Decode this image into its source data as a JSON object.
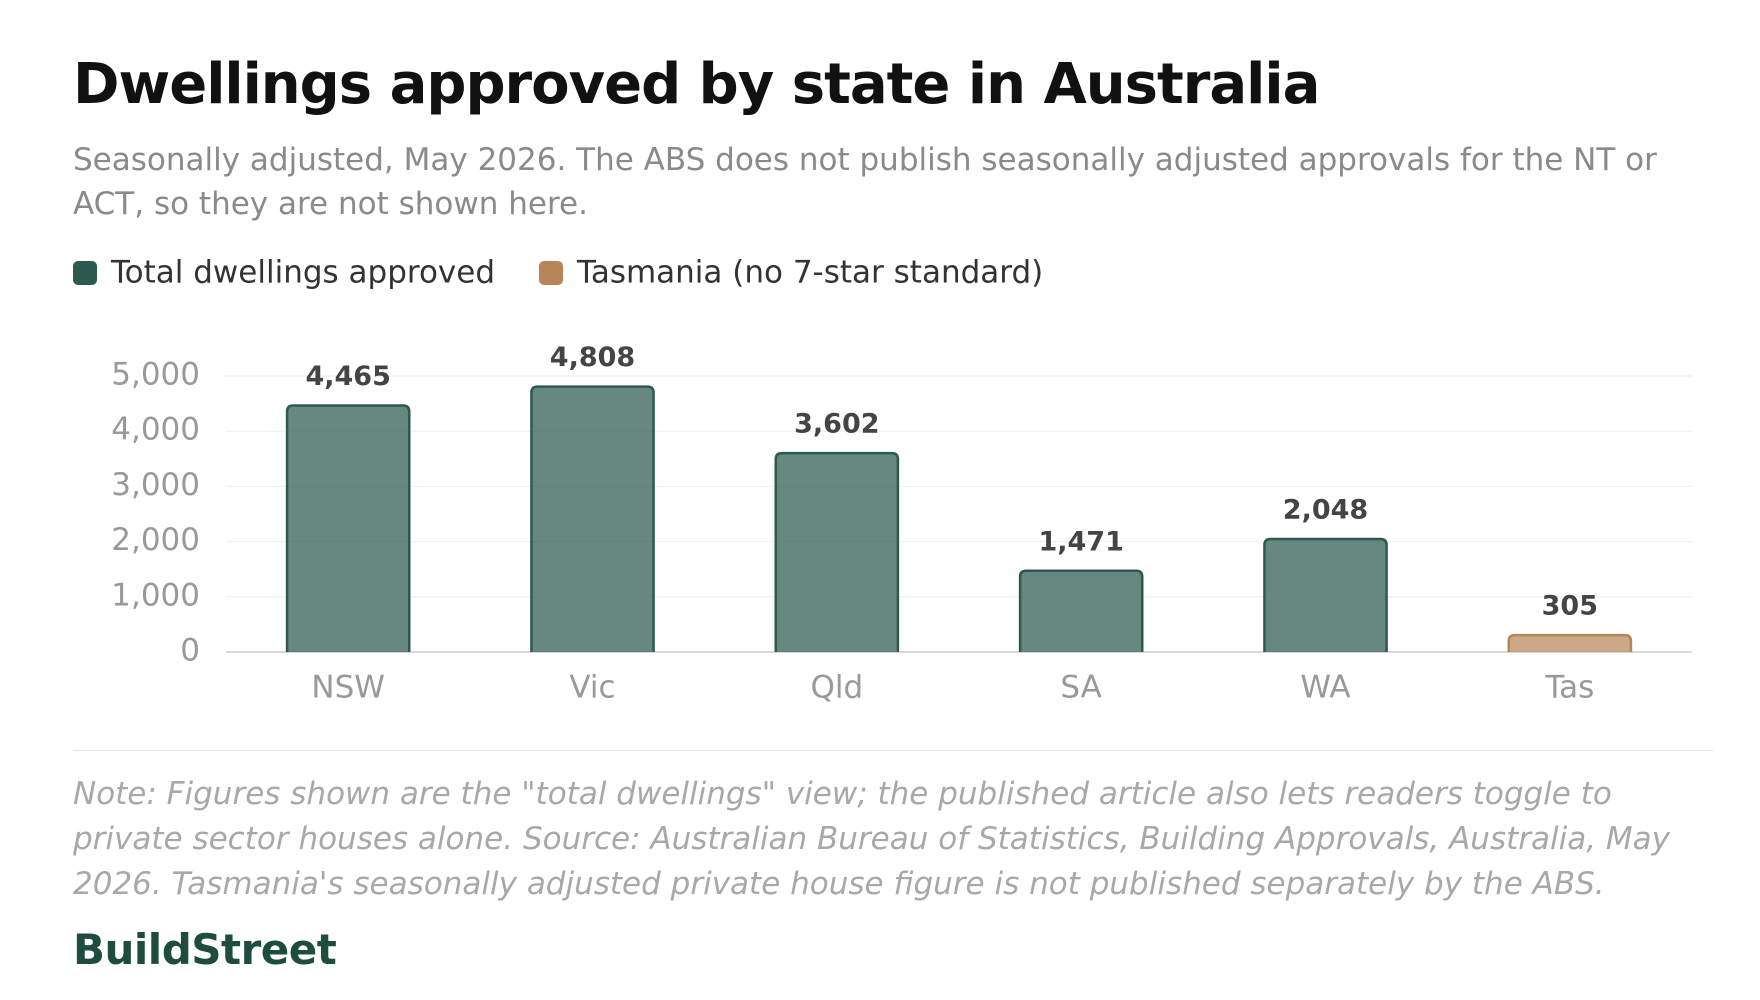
{
  "chart_data": {
    "type": "bar",
    "title": "Dwellings approved by state in Australia",
    "subtitle": "Seasonally adjusted, May 2026. The ABS does not publish seasonally adjusted approvals for the NT or ACT, so they are not shown here.",
    "categories": [
      "NSW",
      "Vic",
      "Qld",
      "SA",
      "WA",
      "Tas"
    ],
    "series": [
      {
        "name": "Total dwellings approved",
        "color": "#2d5a4d",
        "values": [
          4465,
          4808,
          3602,
          1471,
          2048,
          null
        ],
        "value_labels": [
          "4,465",
          "4,808",
          "3,602",
          "1,471",
          "2,048",
          null
        ]
      },
      {
        "name": "Tasmania (no 7-star standard)",
        "color": "#b8855a",
        "values": [
          null,
          null,
          null,
          null,
          null,
          305
        ],
        "value_labels": [
          null,
          null,
          null,
          null,
          null,
          "305"
        ]
      }
    ],
    "ylim": [
      0,
      5000
    ],
    "yticks": [
      0,
      {
        "value": 1000,
        "label": "1,000"
      },
      {
        "value": 2000,
        "label": "2,000"
      },
      {
        "value": 3000,
        "label": "3,000"
      },
      {
        "value": 4000,
        "label": "4,000"
      },
      {
        "value": 5000,
        "label": "5,000"
      }
    ],
    "grid": true,
    "legend": "top-left",
    "note": "Note: Figures shown are the \"total dwellings\" view; the published article also lets readers toggle to private sector houses alone. Source: Australian Bureau of Statistics, Building Approvals, Australia, May 2026. Tasmania's seasonally adjusted private house figure is not published separately by the ABS.",
    "brand": "BuildStreet"
  }
}
